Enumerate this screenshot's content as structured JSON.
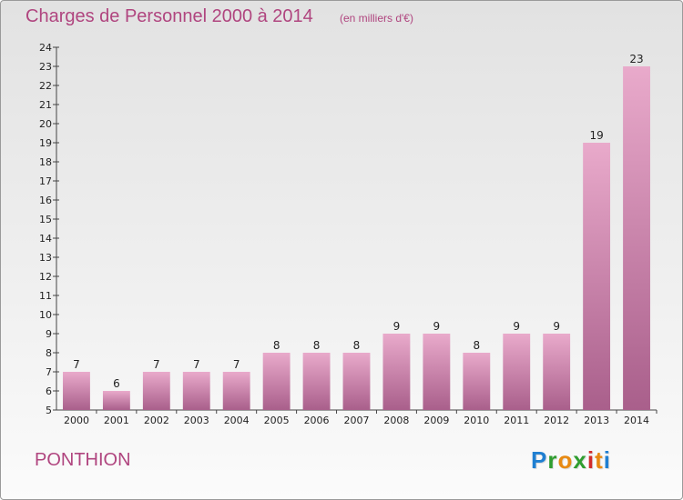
{
  "header": {
    "title": "Charges de Personnel 2000 à 2014",
    "subtitle": "(en milliers d'€)"
  },
  "footer": {
    "commune": "PONTHION",
    "logo": [
      "P",
      "r",
      "o",
      "x",
      "i",
      "t",
      "i"
    ],
    "logo_colors": [
      "#1f7fd1",
      "#2f9d2f",
      "#e88a12",
      "#2f9d2f",
      "#d22b2b",
      "#e88a12",
      "#1f7fd1"
    ]
  },
  "colors": {
    "bar_top": "#e9aacb",
    "bar_bottom": "#a95f8b",
    "title": "#b0457f"
  },
  "chart_data": {
    "type": "bar",
    "categories": [
      "2000",
      "2001",
      "2002",
      "2003",
      "2004",
      "2005",
      "2006",
      "2007",
      "2008",
      "2009",
      "2010",
      "2011",
      "2012",
      "2013",
      "2014"
    ],
    "values": [
      7,
      6,
      7,
      7,
      7,
      8,
      8,
      8,
      9,
      9,
      8,
      9,
      9,
      19,
      23
    ],
    "title": "Charges de Personnel 2000 à 2014",
    "subtitle": "(en milliers d'€)",
    "ylim": [
      5,
      24
    ],
    "yticks": [
      5,
      6,
      7,
      8,
      9,
      10,
      11,
      12,
      13,
      14,
      15,
      16,
      17,
      18,
      19,
      20,
      21,
      22,
      23,
      24
    ],
    "grid": false,
    "legend": "none"
  }
}
